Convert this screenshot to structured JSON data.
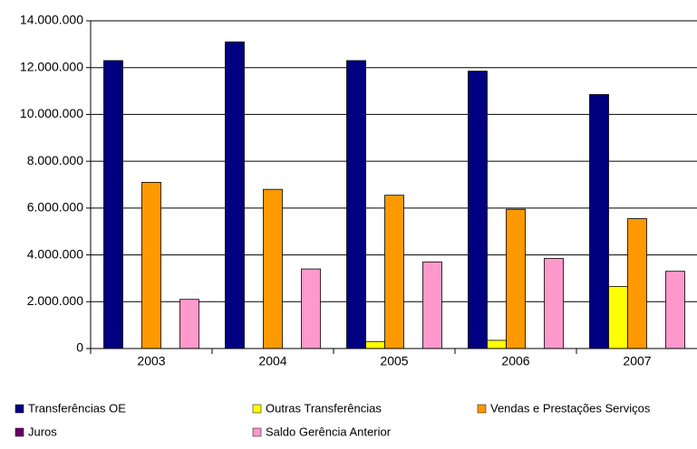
{
  "chart_data": {
    "type": "bar",
    "categories": [
      "2003",
      "2004",
      "2005",
      "2006",
      "2007"
    ],
    "series": [
      {
        "name": "Transferências OE",
        "color": "#000080",
        "values": [
          12300000,
          13100000,
          12300000,
          11850000,
          10850000
        ]
      },
      {
        "name": "Outras Transferências",
        "color": "#ffff00",
        "values": [
          0,
          0,
          300000,
          350000,
          2650000
        ]
      },
      {
        "name": "Vendas e Prestações Serviços",
        "color": "#ff9900",
        "values": [
          7100000,
          6800000,
          6550000,
          5950000,
          5550000
        ]
      },
      {
        "name": "Juros",
        "color": "#660066",
        "values": [
          0,
          0,
          0,
          0,
          0
        ]
      },
      {
        "name": "Saldo Gerência Anterior",
        "color": "#ff99cc",
        "values": [
          2100000,
          3400000,
          3700000,
          3850000,
          3300000
        ]
      }
    ],
    "ylim": [
      0,
      14000000
    ],
    "yticks": [
      0,
      {
        "value": 2000000,
        "label": "2.000.000"
      },
      {
        "value": 4000000,
        "label": "4.000.000"
      },
      {
        "value": 6000000,
        "label": "6.000.000"
      },
      {
        "value": 8000000,
        "label": "8.000.000"
      },
      {
        "value": 10000000,
        "label": "10.000.000"
      },
      {
        "value": 12000000,
        "label": "12.000.000"
      },
      {
        "value": 14000000,
        "label": "14.000.000"
      }
    ],
    "grid": true
  }
}
